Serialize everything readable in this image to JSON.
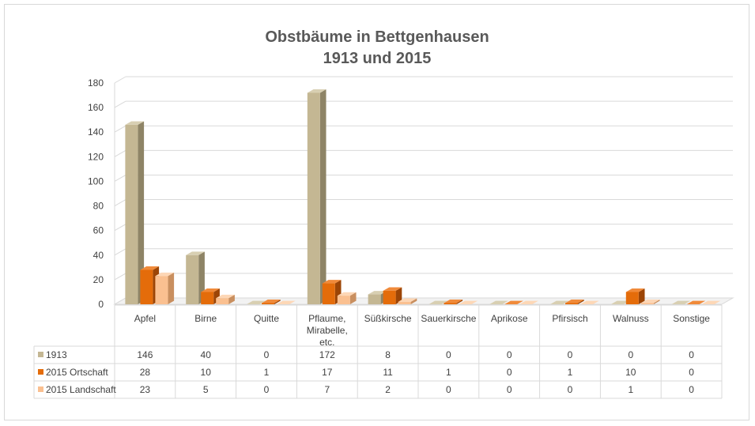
{
  "chart_data": {
    "type": "bar",
    "title": [
      "Obstbäume in Bettgenhausen",
      "1913 und 2015"
    ],
    "categories": [
      [
        "Apfel"
      ],
      [
        "Birne"
      ],
      [
        "Quitte"
      ],
      [
        "Pflaume,",
        "Mirabelle,",
        "etc."
      ],
      [
        "Süßkirsche"
      ],
      [
        "Sauerkirsche"
      ],
      [
        "Aprikose"
      ],
      [
        "Pfirsisch"
      ],
      [
        "Walnuss"
      ],
      [
        "Sonstige"
      ]
    ],
    "series": [
      {
        "name": "1913",
        "values": [
          146,
          40,
          0,
          172,
          8,
          0,
          0,
          0,
          0,
          0
        ]
      },
      {
        "name": "2015 Ortschaft",
        "values": [
          28,
          10,
          1,
          17,
          11,
          1,
          0,
          1,
          10,
          0
        ]
      },
      {
        "name": "2015 Landschaft",
        "values": [
          23,
          5,
          0,
          7,
          2,
          0,
          0,
          0,
          1,
          0
        ]
      }
    ],
    "ylim": [
      0,
      180
    ],
    "yticks": [
      0,
      20,
      40,
      60,
      80,
      100,
      120,
      140,
      160,
      180
    ],
    "grid": true,
    "legend": "data table below chart",
    "colors": {
      "1913": {
        "front": "#c4b793",
        "side": "#8e8466",
        "top": "#d8cfb2"
      },
      "2015 Ortschaft": {
        "front": "#e46c0a",
        "side": "#9c4506",
        "top": "#f08a3a"
      },
      "2015 Landschaft": {
        "front": "#fac090",
        "side": "#c98f5f",
        "top": "#fdd7b6"
      }
    }
  }
}
